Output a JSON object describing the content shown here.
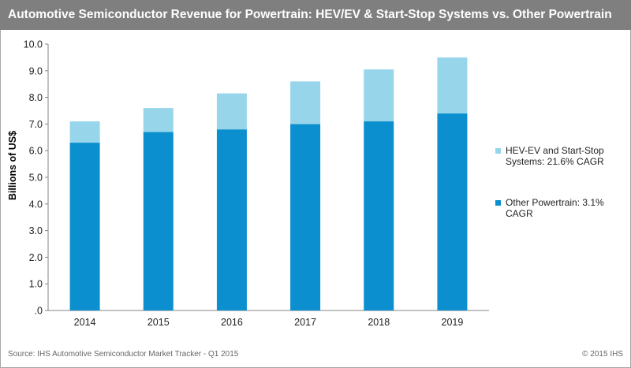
{
  "header": {
    "title": "Automotive Semiconductor Revenue for Powertrain: HEV/EV & Start-Stop Systems vs. Other Powertrain"
  },
  "footer": {
    "source": "Source: IHS Automotive Semiconductor Market Tracker - Q1 2015",
    "copyright": "© 2015 IHS"
  },
  "chart_data": {
    "type": "bar",
    "stacked": true,
    "title": "Automotive Semiconductor Revenue for Powertrain: HEV/EV & Start-Stop Systems vs. Other Powertrain",
    "xlabel": "",
    "ylabel": "Billions of US$",
    "categories": [
      "2014",
      "2015",
      "2016",
      "2017",
      "2018",
      "2019"
    ],
    "y_tick_labels": [
      ".0",
      "1.0",
      "2.0",
      "3.0",
      "4.0",
      "5.0",
      "6.0",
      "7.0",
      "8.0",
      "9.0",
      "10.0"
    ],
    "ylim": [
      0,
      10
    ],
    "grid": false,
    "legend_position": "right",
    "series": [
      {
        "name": "Other Powertrain: 3.1% CAGR",
        "color": "#0b8fce",
        "values": [
          6.3,
          6.7,
          6.8,
          7.0,
          7.1,
          7.4
        ]
      },
      {
        "name": "HEV-EV and Start-Stop Systems: 21.6% CAGR",
        "color": "#97d5ea",
        "values": [
          0.8,
          0.9,
          1.35,
          1.6,
          1.95,
          2.1
        ]
      }
    ],
    "legend_order": [
      1,
      0
    ]
  }
}
